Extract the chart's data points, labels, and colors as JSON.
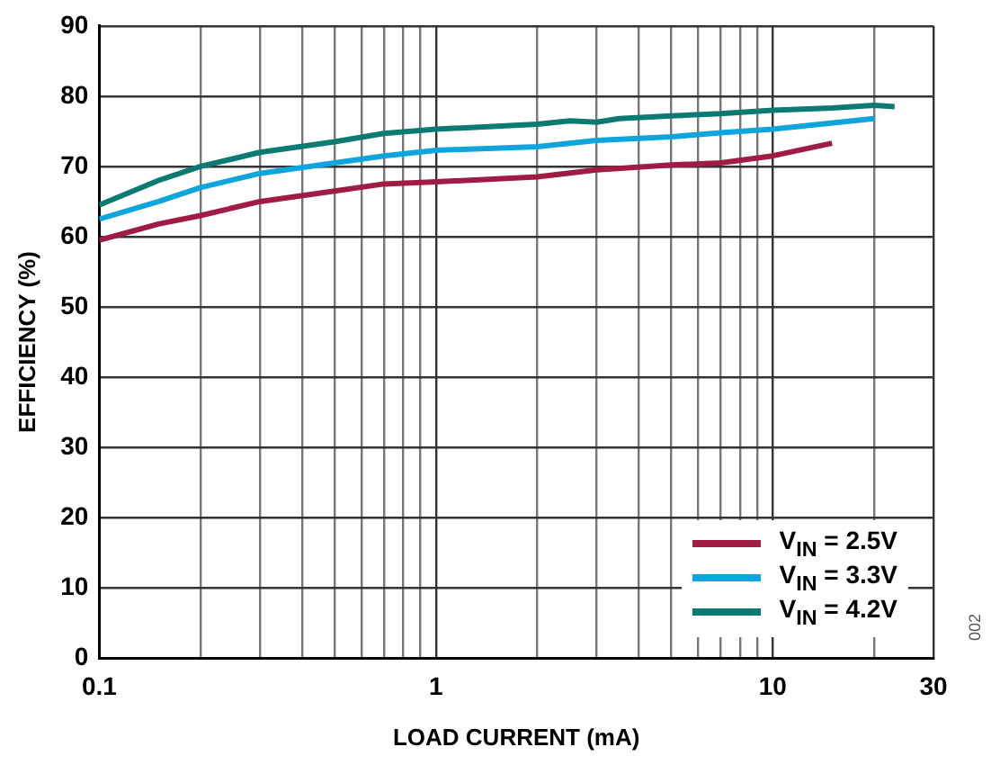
{
  "chart_data": {
    "type": "line",
    "xlabel": "LOAD CURRENT (mA)",
    "ylabel": "EFFICIENCY (%)",
    "log": "x",
    "xlim": [
      0.1,
      30
    ],
    "xticks": [
      0.1,
      {
        "value": 0.2,
        "label": null
      },
      {
        "value": 0.3,
        "label": null
      },
      {
        "value": 0.4,
        "label": null
      },
      {
        "value": 0.5,
        "label": null
      },
      {
        "value": 0.6,
        "label": null
      },
      {
        "value": 0.7,
        "label": null
      },
      {
        "value": 0.8,
        "label": null
      },
      {
        "value": 0.9,
        "label": null
      },
      1,
      {
        "value": 2,
        "label": null
      },
      {
        "value": 3,
        "label": null
      },
      {
        "value": 4,
        "label": null
      },
      {
        "value": 5,
        "label": null
      },
      {
        "value": 6,
        "label": null
      },
      {
        "value": 7,
        "label": null
      },
      {
        "value": 8,
        "label": null
      },
      {
        "value": 9,
        "label": null
      },
      10,
      {
        "value": 20,
        "label": null
      },
      30
    ],
    "ylim": [
      0,
      90
    ],
    "yticks": [
      0,
      10,
      20,
      30,
      40,
      50,
      60,
      70,
      80,
      90
    ],
    "grid": true,
    "legend": "bottom right",
    "marker": "none",
    "line_style": "solid",
    "annotations": [
      "002"
    ],
    "series": [
      {
        "name": "V$_{IN}$ = 2.5V",
        "color": "#a01c45",
        "x": [
          0.1,
          0.15,
          0.2,
          0.3,
          0.5,
          0.7,
          1,
          2,
          3,
          5,
          7,
          10,
          15
        ],
        "values": [
          59.5,
          61.8,
          63,
          65,
          66.5,
          67.5,
          67.8,
          68.5,
          69.5,
          70.2,
          70.5,
          71.5,
          73.3
        ]
      },
      {
        "name": "V$_{IN}$ = 3.3V",
        "color": "#0ea5dc",
        "x": [
          0.1,
          0.15,
          0.2,
          0.3,
          0.5,
          0.7,
          1,
          2,
          3,
          5,
          7,
          10,
          20
        ],
        "values": [
          62.5,
          65,
          67,
          69,
          70.5,
          71.5,
          72.3,
          72.8,
          73.7,
          74.2,
          74.8,
          75.3,
          76.8
        ]
      },
      {
        "name": "V$_{IN}$ = 4.2V",
        "color": "#0a7a72",
        "x": [
          0.1,
          0.15,
          0.2,
          0.3,
          0.5,
          0.7,
          1,
          2,
          2.5,
          3,
          3.5,
          5,
          7,
          10,
          15,
          20,
          23
        ],
        "values": [
          64.5,
          68,
          70,
          72,
          73.5,
          74.7,
          75.3,
          76,
          76.5,
          76.3,
          76.8,
          77.2,
          77.5,
          78,
          78.3,
          78.7,
          78.5
        ]
      }
    ]
  }
}
